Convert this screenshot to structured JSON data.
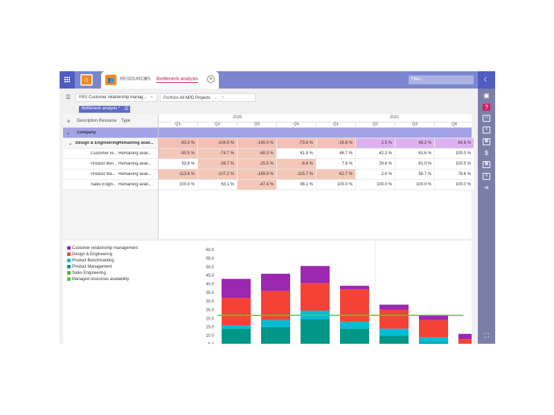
{
  "topbar": {
    "breadcrumb_resources": "RESOURCES",
    "breadcrumb_sep": ">",
    "breadcrumb_current": "Bottleneck analysis",
    "add_tab_glyph": "+",
    "filter_placeholder": "Filter..."
  },
  "rail": {
    "icons": [
      "moon-icon",
      "save-icon",
      "help-icon",
      "display-icon",
      "excel-icon",
      "calendar-icon",
      "dollar-icon",
      "calendar-icon",
      "outlook-icon",
      "share-icon",
      "fullscreen-icon"
    ]
  },
  "filterbar": {
    "rbs_label": "RBS",
    "rbs_value": "Customer relationship manag...",
    "portfolio_label": "Portfolio",
    "portfolio_value": "All NPD Projects"
  },
  "view": {
    "tab_label": "Bottleneck analysis *",
    "menu_glyph": "☰"
  },
  "grid": {
    "col_description": "Description Resource",
    "col_type": "Type",
    "years": [
      "2020",
      "2021"
    ],
    "quarters": [
      "Q1",
      "Q2",
      "Q3",
      "Q4",
      "Q1",
      "Q2",
      "Q3",
      "Q4"
    ],
    "rows": [
      {
        "label": "Company",
        "type": "",
        "values": [
          "",
          "",
          "",
          "",
          "",
          "",
          "",
          ""
        ]
      },
      {
        "label": "Design & Engineering",
        "type": "Remaining avail...",
        "values": [
          "-93.3 %",
          "-104.9 %",
          "-140.0 %",
          "-73.6 %",
          "-26.8 %",
          "2.5 %",
          "48.2 %",
          "84.8 %"
        ]
      },
      {
        "label": "Customer re...",
        "type": "Remaining avail...",
        "values": [
          "-90.5 %",
          "-74.7 %",
          "-68.3 %",
          "61.9 %",
          "66.7 %",
          "42.3 %",
          "61.6 %",
          "100.0 %"
        ]
      },
      {
        "label": "Product Ben...",
        "type": "Remaining avail...",
        "values": [
          "53.8 %",
          "-39.7 %",
          "-25.5 %",
          "-6.6 %",
          "7.8 %",
          "29.6 %",
          "61.0 %",
          "100.0 %"
        ]
      },
      {
        "label": "Product Ma...",
        "type": "Remaining avail...",
        "values": [
          "-113.6 %",
          "-107.2 %",
          "-169.9 %",
          "-115.7 %",
          "-62.7 %",
          "2.4 %",
          "58.7 %",
          "78.6 %"
        ]
      },
      {
        "label": "Sales Engin...",
        "type": "Remaining avail...",
        "values": [
          "100.0 %",
          "63.1 %",
          "-47.4 %",
          "98.1 %",
          "100.0 %",
          "100.0 %",
          "100.0 %",
          "100.0 %"
        ]
      }
    ],
    "cell_colors": {
      "negative": "#f4c7b8",
      "positive": "#ffffff",
      "design_negative": "#f4c0b5",
      "design_positive": "#ddb3ef"
    }
  },
  "chart_data": {
    "type": "bar",
    "stacked": true,
    "yticks": [
      "60.0",
      "55.0",
      "50.0",
      "45.0",
      "40.0",
      "35.0",
      "30.0",
      "25.0",
      "20.0",
      "15.0",
      "10.0",
      "5.0"
    ],
    "ylim": [
      0,
      62
    ],
    "legend": [
      {
        "name": "Customer relationship management",
        "color": "#9c27b0"
      },
      {
        "name": "Design & Engineering",
        "color": "#f44336"
      },
      {
        "name": "Product Benchmarking",
        "color": "#00bcd4"
      },
      {
        "name": "Product Management",
        "color": "#009688"
      },
      {
        "name": "Sales Engineering",
        "color": "#4caf50"
      },
      {
        "name": "Managed resources availability",
        "color": "#44d62c"
      }
    ],
    "series": [
      {
        "name": "Sales Engineering",
        "values": [
          0,
          0,
          1.5,
          0,
          0,
          0,
          0
        ]
      },
      {
        "name": "Product Management",
        "values": [
          14,
          15,
          18,
          14,
          10,
          6,
          3
        ]
      },
      {
        "name": "Product Benchmarking",
        "values": [
          2,
          4,
          5,
          4,
          4,
          3,
          0
        ]
      },
      {
        "name": "Design & Engineering",
        "values": [
          16,
          17,
          16,
          19,
          11,
          10,
          5
        ]
      },
      {
        "name": "Customer relationship management",
        "values": [
          11,
          10,
          10,
          2,
          3,
          3,
          3
        ]
      }
    ],
    "availability": 21.8
  }
}
